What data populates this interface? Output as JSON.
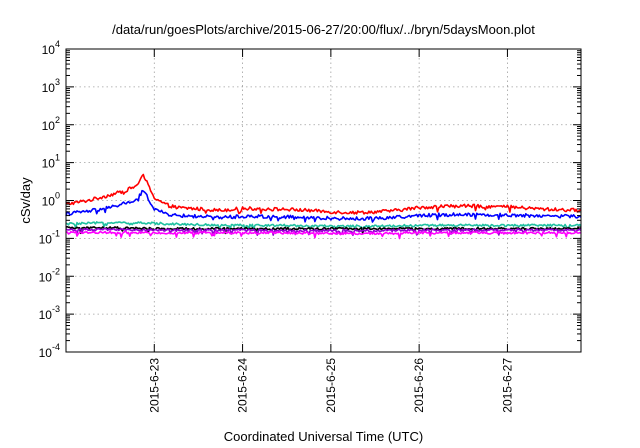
{
  "chart_data": {
    "type": "line",
    "title": "/data/run/goesPlots/archive/2015-06-27/20:00/flux/../bryn/5daysMoon.plot",
    "xlabel": "Coordinated Universal Time (UTC)",
    "ylabel": "cSv/day",
    "yscale": "log",
    "ylim": [
      0.0001,
      10000
    ],
    "xlim": [
      "2015-06-22 00:00",
      "2015-06-27 20:00"
    ],
    "y_ticks": [
      {
        "base": "10",
        "exp": "-4"
      },
      {
        "base": "10",
        "exp": "-3"
      },
      {
        "base": "10",
        "exp": "-2"
      },
      {
        "base": "10",
        "exp": "-1"
      },
      {
        "base": "10",
        "exp": "0"
      },
      {
        "base": "10",
        "exp": "1"
      },
      {
        "base": "10",
        "exp": "2"
      },
      {
        "base": "10",
        "exp": "3"
      },
      {
        "base": "10",
        "exp": "4"
      }
    ],
    "x_ticks": [
      "2015-6-23",
      "2015-6-24",
      "2015-6-25",
      "2015-6-26",
      "2015-6-27"
    ],
    "grid": true,
    "legend": "none",
    "series": [
      {
        "color": "#ff0000",
        "x": [
          "2015-06-22 00:00",
          "2015-06-22 06:00",
          "2015-06-22 12:00",
          "2015-06-22 16:00",
          "2015-06-22 19:00",
          "2015-06-22 21:00",
          "2015-06-22 22:00",
          "2015-06-23 00:00",
          "2015-06-23 03:00",
          "2015-06-23 06:00",
          "2015-06-23 12:00",
          "2015-06-23 18:00",
          "2015-06-24 00:00",
          "2015-06-24 06:00",
          "2015-06-24 12:00",
          "2015-06-24 18:00",
          "2015-06-25 00:00",
          "2015-06-25 06:00",
          "2015-06-25 12:00",
          "2015-06-25 18:00",
          "2015-06-26 00:00",
          "2015-06-26 06:00",
          "2015-06-26 12:00",
          "2015-06-26 18:00",
          "2015-06-27 00:00",
          "2015-06-27 06:00",
          "2015-06-27 12:00",
          "2015-06-27 20:00"
        ],
        "y": [
          0.8,
          1.0,
          1.4,
          1.8,
          2.4,
          4.5,
          3.0,
          1.2,
          0.8,
          0.65,
          0.6,
          0.55,
          0.62,
          0.6,
          0.58,
          0.55,
          0.5,
          0.48,
          0.5,
          0.55,
          0.65,
          0.7,
          0.72,
          0.7,
          0.68,
          0.62,
          0.58,
          0.55
        ]
      },
      {
        "color": "#0000ff",
        "x": [
          "2015-06-22 00:00",
          "2015-06-22 06:00",
          "2015-06-22 12:00",
          "2015-06-22 16:00",
          "2015-06-22 19:00",
          "2015-06-22 21:00",
          "2015-06-22 22:00",
          "2015-06-23 00:00",
          "2015-06-23 03:00",
          "2015-06-23 06:00",
          "2015-06-23 12:00",
          "2015-06-23 18:00",
          "2015-06-24 00:00",
          "2015-06-24 06:00",
          "2015-06-24 12:00",
          "2015-06-24 18:00",
          "2015-06-25 00:00",
          "2015-06-25 06:00",
          "2015-06-25 12:00",
          "2015-06-25 18:00",
          "2015-06-26 00:00",
          "2015-06-26 06:00",
          "2015-06-26 12:00",
          "2015-06-26 18:00",
          "2015-06-27 00:00",
          "2015-06-27 06:00",
          "2015-06-27 12:00",
          "2015-06-27 20:00"
        ],
        "y": [
          0.45,
          0.52,
          0.65,
          0.85,
          1.0,
          1.8,
          1.3,
          0.6,
          0.45,
          0.4,
          0.38,
          0.36,
          0.38,
          0.38,
          0.37,
          0.35,
          0.34,
          0.33,
          0.34,
          0.36,
          0.4,
          0.42,
          0.43,
          0.42,
          0.41,
          0.4,
          0.39,
          0.38
        ]
      },
      {
        "color": "#20c0a0",
        "x": [
          "2015-06-22 00:00",
          "2015-06-22 12:00",
          "2015-06-23 00:00",
          "2015-06-23 12:00",
          "2015-06-24 00:00",
          "2015-06-24 12:00",
          "2015-06-25 00:00",
          "2015-06-25 12:00",
          "2015-06-26 00:00",
          "2015-06-26 12:00",
          "2015-06-27 00:00",
          "2015-06-27 20:00"
        ],
        "y": [
          0.24,
          0.26,
          0.25,
          0.23,
          0.22,
          0.22,
          0.21,
          0.21,
          0.22,
          0.22,
          0.22,
          0.22
        ]
      },
      {
        "color": "#000000",
        "x": [
          "2015-06-22 00:00",
          "2015-06-22 12:00",
          "2015-06-23 00:00",
          "2015-06-23 12:00",
          "2015-06-24 00:00",
          "2015-06-24 12:00",
          "2015-06-25 00:00",
          "2015-06-25 12:00",
          "2015-06-26 00:00",
          "2015-06-26 12:00",
          "2015-06-27 00:00",
          "2015-06-27 20:00"
        ],
        "y": [
          0.19,
          0.19,
          0.18,
          0.18,
          0.18,
          0.18,
          0.18,
          0.18,
          0.18,
          0.18,
          0.18,
          0.18
        ]
      },
      {
        "color": "#9400d3",
        "x": [
          "2015-06-22 00:00",
          "2015-06-22 12:00",
          "2015-06-23 00:00",
          "2015-06-23 12:00",
          "2015-06-24 00:00",
          "2015-06-24 12:00",
          "2015-06-25 00:00",
          "2015-06-25 12:00",
          "2015-06-26 00:00",
          "2015-06-26 12:00",
          "2015-06-27 00:00",
          "2015-06-27 20:00"
        ],
        "y": [
          0.17,
          0.17,
          0.165,
          0.165,
          0.165,
          0.16,
          0.16,
          0.16,
          0.165,
          0.165,
          0.165,
          0.165
        ]
      },
      {
        "color": "#ff00ff",
        "x": [
          "2015-06-22 00:00",
          "2015-06-22 12:00",
          "2015-06-23 00:00",
          "2015-06-23 12:00",
          "2015-06-24 00:00",
          "2015-06-24 12:00",
          "2015-06-25 00:00",
          "2015-06-25 12:00",
          "2015-06-26 00:00",
          "2015-06-26 12:00",
          "2015-06-27 00:00",
          "2015-06-27 20:00"
        ],
        "y": [
          0.14,
          0.145,
          0.14,
          0.14,
          0.14,
          0.14,
          0.135,
          0.135,
          0.14,
          0.14,
          0.14,
          0.14
        ]
      }
    ]
  }
}
